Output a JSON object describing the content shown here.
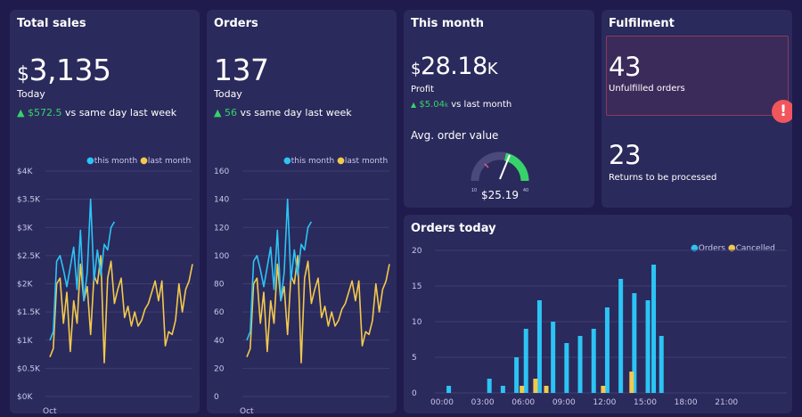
{
  "colors": {
    "background": "#1f1b4c",
    "card": "#2b2a5c",
    "this_month": "#2bc4f5",
    "last_month": "#f2c94c",
    "positive": "#36d36a",
    "alert": "#f0565c"
  },
  "total_sales": {
    "title": "Total sales",
    "currency": "$",
    "value": "3,135",
    "period": "Today",
    "delta": "$572.5",
    "delta_text": "vs same day last week",
    "legend_this": "this month",
    "legend_last": "last month"
  },
  "orders": {
    "title": "Orders",
    "value": "137",
    "period": "Today",
    "delta": "56",
    "delta_text": "vs same day last week",
    "legend_this": "this month",
    "legend_last": "last month"
  },
  "this_month": {
    "title": "This month",
    "currency": "$",
    "value": "28.18",
    "suffix": "K",
    "label": "Profit",
    "delta": "$5.04",
    "delta_suffix": "k",
    "delta_text": "vs last month",
    "gauge_title": "Avg. order value",
    "gauge_value": "$25.19",
    "gauge_min": "10",
    "gauge_max": "40"
  },
  "fulfilment": {
    "title": "Fulfilment",
    "unfulfilled_value": "43",
    "unfulfilled_label": "Unfulfilled orders",
    "alert_icon": "!",
    "returns_value": "23",
    "returns_label": "Returns to be processed"
  },
  "orders_today": {
    "title": "Orders today",
    "legend_orders": "Orders",
    "legend_cancelled": "Cancelled"
  },
  "chart_data": [
    {
      "id": "sales",
      "type": "line",
      "title": "Total sales",
      "ylim": [
        0,
        4000
      ],
      "y_ticks": [
        0,
        500,
        1000,
        1500,
        2000,
        2500,
        3000,
        3500,
        4000
      ],
      "y_tick_labels": [
        "$0K",
        "$0.5K",
        "$1K",
        "$1.5K",
        "$2K",
        "$2.5K",
        "$3K",
        "$3.5K",
        "$4K"
      ],
      "x_label": "Oct",
      "series": [
        {
          "name": "this month",
          "color": "#2bc4f5",
          "values": [
            1000,
            1150,
            2400,
            2500,
            2250,
            1950,
            2300,
            2650,
            1900,
            2950,
            1700,
            2200,
            3500,
            2050,
            2600,
            2150,
            2700,
            2600,
            3000,
            3100
          ]
        },
        {
          "name": "last month",
          "color": "#f2c94c",
          "values": [
            700,
            850,
            2000,
            2100,
            1300,
            1850,
            800,
            1700,
            1300,
            2350,
            1700,
            1950,
            1100,
            2150,
            2000,
            2500,
            600,
            2100,
            2400,
            1650,
            1900,
            2100,
            1400,
            1600,
            1250,
            1500,
            1250,
            1350,
            1550,
            1650,
            1850,
            2050,
            1700,
            2050,
            900,
            1150,
            1100,
            1350,
            2000,
            1500,
            1900,
            2050,
            2350
          ]
        }
      ]
    },
    {
      "id": "orders",
      "type": "line",
      "title": "Orders",
      "ylim": [
        0,
        160
      ],
      "y_ticks": [
        0,
        20,
        40,
        60,
        80,
        100,
        120,
        140,
        160
      ],
      "y_tick_labels": [
        "0",
        "20",
        "40",
        "60",
        "80",
        "100",
        "120",
        "140",
        "160"
      ],
      "x_label": "Oct",
      "series": [
        {
          "name": "this month",
          "color": "#2bc4f5",
          "values": [
            40,
            46,
            96,
            100,
            90,
            78,
            92,
            106,
            76,
            118,
            68,
            88,
            140,
            82,
            104,
            86,
            108,
            104,
            120,
            124
          ]
        },
        {
          "name": "last month",
          "color": "#f2c94c",
          "values": [
            28,
            34,
            80,
            84,
            52,
            74,
            32,
            68,
            52,
            94,
            68,
            78,
            44,
            86,
            80,
            100,
            24,
            84,
            96,
            66,
            76,
            84,
            56,
            64,
            50,
            60,
            50,
            54,
            62,
            66,
            74,
            82,
            68,
            82,
            36,
            46,
            44,
            54,
            80,
            60,
            76,
            82,
            94
          ]
        }
      ]
    },
    {
      "id": "orders_today",
      "type": "bar",
      "title": "Orders today",
      "ylim": [
        0,
        20
      ],
      "y_ticks": [
        0,
        5,
        10,
        15,
        20
      ],
      "x_tick_hours": [
        0,
        3,
        6,
        9,
        12,
        15,
        18,
        21
      ],
      "x_tick_labels": [
        "00:00",
        "03:00",
        "06:00",
        "09:00",
        "12:00",
        "15:00",
        "18:00",
        "21:00"
      ],
      "series": [
        {
          "name": "Orders",
          "color": "#2bc4f5",
          "hours": [
            0.5,
            3.5,
            4.5,
            5.5,
            6.2,
            7.2,
            8.2,
            9.2,
            10.2,
            11.2,
            12.2,
            13.2,
            14.2,
            15.2,
            16.2
          ],
          "values": [
            1,
            2,
            1,
            5,
            9,
            13,
            10,
            7,
            8,
            9,
            12,
            16,
            14,
            13,
            8
          ]
        },
        {
          "name": "Cancelled",
          "color": "#f2c94c",
          "hours": [
            5.9,
            6.9,
            7.7,
            11.9,
            14.0
          ],
          "values": [
            1,
            2,
            1,
            1,
            3
          ]
        }
      ],
      "extra_orders": {
        "hour": 15.2,
        "value": 18
      }
    }
  ]
}
